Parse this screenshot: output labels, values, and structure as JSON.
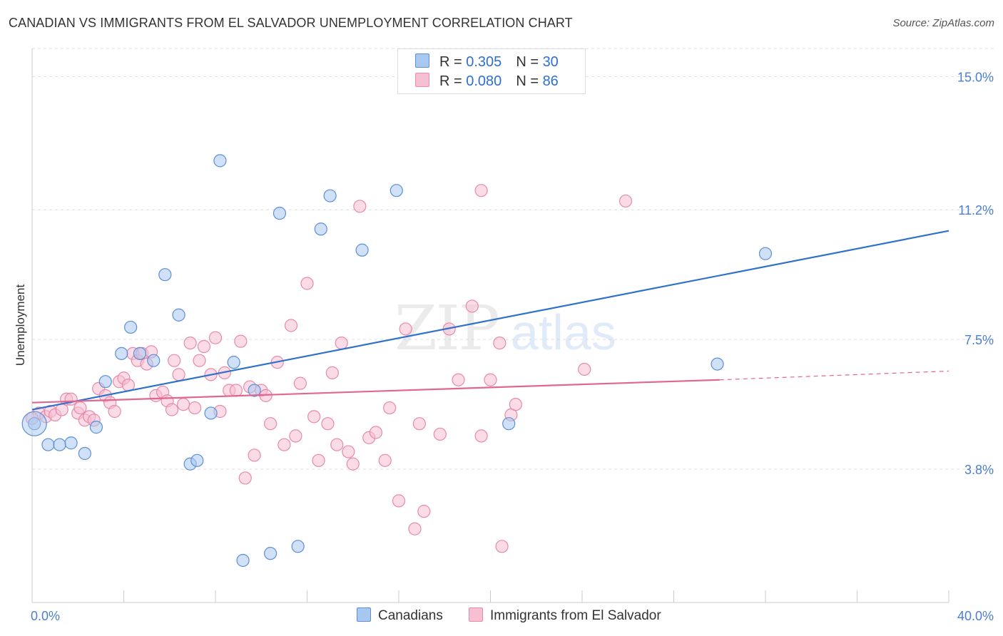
{
  "header": {
    "title": "CANADIAN VS IMMIGRANTS FROM EL SALVADOR UNEMPLOYMENT CORRELATION CHART",
    "source": "Source: ZipAtlas.com"
  },
  "legend": {
    "row1": {
      "r_label": "R = ",
      "r_value": "0.305",
      "n_label": "N = ",
      "n_value": "30"
    },
    "row2": {
      "r_label": "R = ",
      "r_value": "0.080",
      "n_label": "N = ",
      "n_value": "86"
    }
  },
  "bottom_legend": {
    "series1": "Canadians",
    "series2": "Immigrants from El Salvador"
  },
  "colors": {
    "canadians_fill": "#a9c8f0",
    "canadians_stroke": "#5b8fd6",
    "canadians_line": "#2f72cc",
    "salvador_fill": "#f7bfd1",
    "salvador_stroke": "#e68aa9",
    "salvador_line": "#e0678f",
    "grid": "#dddddd",
    "tick_text": "#4a7fd0"
  },
  "chart_data": {
    "type": "scatter",
    "title": "CANADIAN VS IMMIGRANTS FROM EL SALVADOR UNEMPLOYMENT CORRELATION CHART",
    "xlabel": "",
    "ylabel": "Unemployment",
    "xlim": [
      0,
      40
    ],
    "ylim": [
      0,
      15.8
    ],
    "x_tick_labels": [
      "0.0%",
      "40.0%"
    ],
    "y_ticks": [
      3.8,
      7.5,
      11.2,
      15.0
    ],
    "y_tick_labels": [
      "3.8%",
      "7.5%",
      "11.2%",
      "15.0%"
    ],
    "grid": true,
    "legend_position": "top-center",
    "series": [
      {
        "name": "Canadians",
        "R": 0.305,
        "N": 30,
        "trend": {
          "x": [
            0,
            40
          ],
          "y": [
            5.5,
            10.6
          ]
        },
        "points": [
          [
            0.1,
            5.1
          ],
          [
            0.7,
            4.5
          ],
          [
            1.2,
            4.5
          ],
          [
            1.7,
            4.55
          ],
          [
            2.3,
            4.25
          ],
          [
            2.8,
            5.0
          ],
          [
            3.2,
            6.3
          ],
          [
            3.9,
            7.1
          ],
          [
            4.3,
            7.85
          ],
          [
            4.7,
            7.1
          ],
          [
            5.3,
            6.9
          ],
          [
            5.8,
            9.35
          ],
          [
            6.4,
            8.2
          ],
          [
            6.9,
            3.95
          ],
          [
            7.2,
            4.05
          ],
          [
            7.8,
            5.4
          ],
          [
            8.2,
            12.6
          ],
          [
            8.8,
            6.85
          ],
          [
            9.2,
            1.2
          ],
          [
            9.7,
            6.05
          ],
          [
            10.4,
            1.4
          ],
          [
            10.8,
            11.1
          ],
          [
            11.6,
            1.6
          ],
          [
            12.6,
            10.65
          ],
          [
            13.0,
            11.6
          ],
          [
            14.4,
            10.05
          ],
          [
            15.9,
            11.75
          ],
          [
            20.8,
            5.1
          ],
          [
            29.9,
            6.8
          ],
          [
            32.0,
            9.95
          ]
        ]
      },
      {
        "name": "Immigrants from El Salvador",
        "R": 0.08,
        "N": 86,
        "trend": {
          "x": [
            0,
            30
          ],
          "y": [
            5.7,
            6.35
          ]
        },
        "trend_extension": {
          "x": [
            30,
            40
          ],
          "y": [
            6.35,
            6.6
          ]
        },
        "points": [
          [
            0.3,
            5.4
          ],
          [
            0.6,
            5.3
          ],
          [
            0.8,
            5.45
          ],
          [
            1.0,
            5.35
          ],
          [
            1.3,
            5.5
          ],
          [
            1.5,
            5.8
          ],
          [
            1.7,
            5.8
          ],
          [
            2.0,
            5.4
          ],
          [
            2.1,
            5.55
          ],
          [
            2.3,
            5.2
          ],
          [
            2.5,
            5.3
          ],
          [
            2.7,
            5.2
          ],
          [
            2.9,
            6.1
          ],
          [
            3.2,
            5.9
          ],
          [
            3.4,
            5.7
          ],
          [
            3.6,
            5.45
          ],
          [
            3.8,
            6.3
          ],
          [
            4.0,
            6.4
          ],
          [
            4.2,
            6.2
          ],
          [
            4.4,
            7.1
          ],
          [
            4.6,
            6.9
          ],
          [
            4.8,
            7.1
          ],
          [
            5.0,
            6.8
          ],
          [
            5.2,
            7.15
          ],
          [
            5.4,
            5.9
          ],
          [
            5.7,
            6.0
          ],
          [
            5.9,
            5.75
          ],
          [
            6.1,
            5.5
          ],
          [
            6.2,
            6.9
          ],
          [
            6.4,
            6.5
          ],
          [
            6.6,
            5.65
          ],
          [
            6.9,
            7.4
          ],
          [
            7.1,
            5.55
          ],
          [
            7.3,
            6.9
          ],
          [
            7.5,
            7.3
          ],
          [
            7.8,
            6.5
          ],
          [
            8.0,
            7.55
          ],
          [
            8.2,
            5.45
          ],
          [
            8.4,
            6.55
          ],
          [
            8.6,
            6.05
          ],
          [
            8.9,
            6.05
          ],
          [
            9.1,
            7.45
          ],
          [
            9.3,
            3.55
          ],
          [
            9.5,
            6.15
          ],
          [
            9.7,
            4.2
          ],
          [
            10.0,
            6.05
          ],
          [
            10.2,
            5.9
          ],
          [
            10.4,
            5.1
          ],
          [
            10.7,
            6.85
          ],
          [
            11.0,
            4.5
          ],
          [
            11.3,
            7.9
          ],
          [
            11.5,
            4.75
          ],
          [
            11.7,
            6.25
          ],
          [
            12.0,
            9.1
          ],
          [
            12.3,
            5.3
          ],
          [
            12.5,
            4.05
          ],
          [
            12.9,
            5.1
          ],
          [
            13.1,
            6.55
          ],
          [
            13.3,
            4.5
          ],
          [
            13.5,
            7.4
          ],
          [
            13.8,
            4.3
          ],
          [
            14.0,
            3.95
          ],
          [
            14.3,
            11.3
          ],
          [
            14.7,
            4.7
          ],
          [
            15.0,
            4.85
          ],
          [
            15.4,
            4.05
          ],
          [
            15.6,
            5.55
          ],
          [
            16.0,
            2.9
          ],
          [
            16.3,
            7.8
          ],
          [
            16.7,
            2.1
          ],
          [
            16.9,
            5.1
          ],
          [
            17.1,
            2.6
          ],
          [
            17.8,
            4.8
          ],
          [
            18.2,
            7.8
          ],
          [
            18.6,
            6.35
          ],
          [
            19.2,
            8.45
          ],
          [
            19.6,
            11.75
          ],
          [
            19.6,
            4.75
          ],
          [
            20.0,
            6.35
          ],
          [
            20.4,
            7.4
          ],
          [
            20.5,
            1.6
          ],
          [
            20.9,
            5.35
          ],
          [
            21.1,
            5.65
          ],
          [
            24.1,
            6.65
          ],
          [
            25.9,
            11.45
          ],
          [
            0.0,
            5.25
          ]
        ]
      }
    ]
  }
}
